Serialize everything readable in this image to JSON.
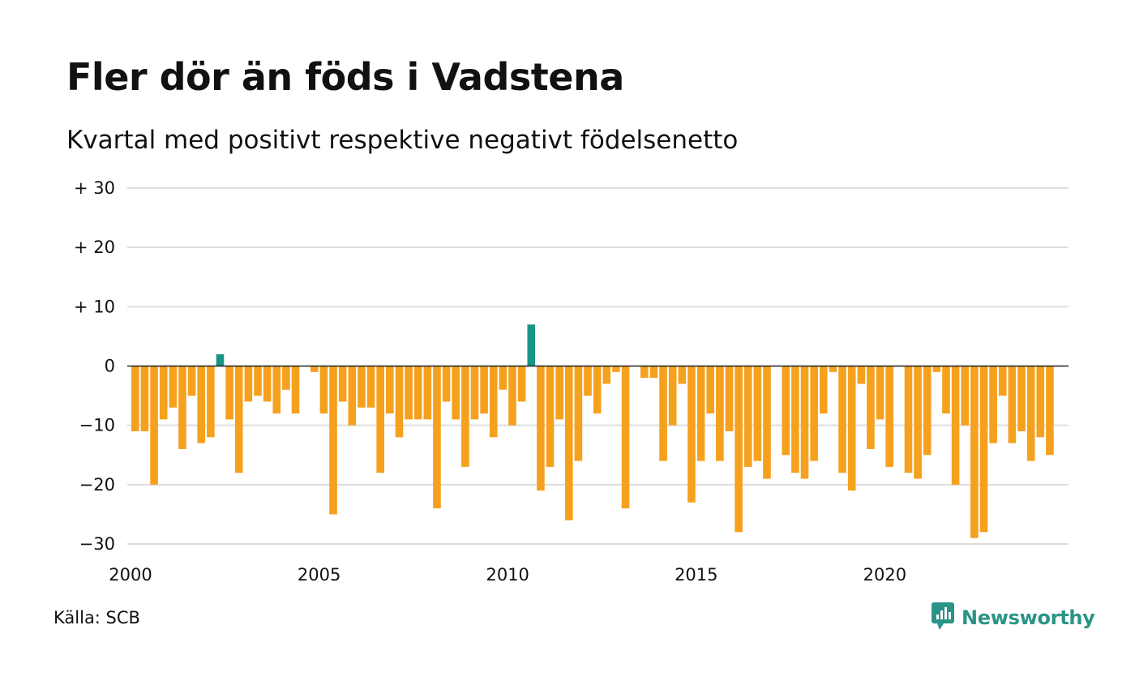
{
  "title": "Fler dör än föds i Vadstena",
  "subtitle": "Kvartal med positivt respektive negativt födelsenetto",
  "source": "Källa: SCB",
  "brand": {
    "name": "Newsworthy",
    "icon": "newsworthy-logo-icon",
    "color": "#2a9486"
  },
  "colors": {
    "positive": "#1a9485",
    "negative": "#f5a11e",
    "grid": "#dddddd",
    "zero_line": "#222222"
  },
  "chart_data": {
    "type": "bar",
    "title": "Fler dör än föds i Vadstena",
    "subtitle": "Kvartal med positivt respektive negativt födelsenetto",
    "xlabel": "",
    "ylabel": "",
    "x_start": 2000,
    "periods_per_year": 4,
    "x_ticks": [
      "2000",
      "2005",
      "2010",
      "2015",
      "2020"
    ],
    "y_ticks": [
      {
        "value": 30,
        "label": "+ 30"
      },
      {
        "value": 20,
        "label": "+ 20"
      },
      {
        "value": 10,
        "label": "+ 10"
      },
      {
        "value": 0,
        "label": "0"
      },
      {
        "value": -10,
        "label": "−10"
      },
      {
        "value": -20,
        "label": "−20"
      },
      {
        "value": -30,
        "label": "−30"
      }
    ],
    "ylim": [
      -30,
      30
    ],
    "grid": true,
    "legend": "none",
    "values": [
      -11,
      -11,
      -20,
      -9,
      -7,
      -14,
      -5,
      -13,
      -12,
      2,
      -9,
      -18,
      -6,
      -5,
      -6,
      -8,
      -4,
      -8,
      0,
      -1,
      -8,
      -25,
      -6,
      -10,
      -7,
      -7,
      -18,
      -8,
      -12,
      -9,
      -9,
      -9,
      -24,
      -6,
      -9,
      -17,
      -9,
      -8,
      -12,
      -4,
      -10,
      -6,
      7,
      -21,
      -17,
      -9,
      -26,
      -16,
      -5,
      -8,
      -3,
      -1,
      -24,
      0,
      -2,
      -2,
      -16,
      -10,
      -3,
      -23,
      -16,
      -8,
      -16,
      -11,
      -28,
      -17,
      -16,
      -19,
      0,
      -15,
      -18,
      -19,
      -16,
      -8,
      -1,
      -18,
      -21,
      -3,
      -14,
      -9,
      -17,
      0,
      -18,
      -19,
      -15,
      -1,
      -8,
      -20,
      -10,
      -29,
      -28,
      -13,
      -5,
      -13,
      -11,
      -16,
      -12,
      -15
    ]
  }
}
